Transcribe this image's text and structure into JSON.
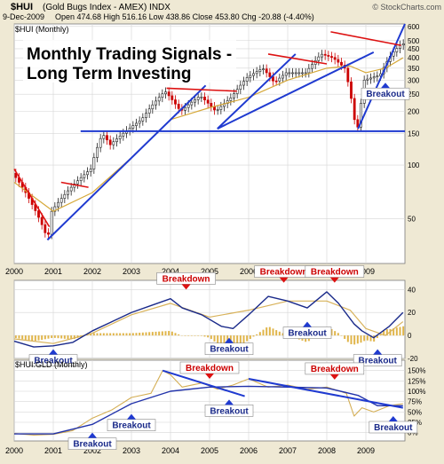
{
  "header": {
    "symbol": "$HUI",
    "name": "(Gold Bugs Index - AMEX) INDX",
    "date": "9-Dec-2009",
    "ohlc": "Open 474.68  High 516.16  Low 438.86  Close 453.80  Chg -20.88 (-4.40%)",
    "watermark": "© StockCharts.com"
  },
  "colors": {
    "background": "#efe9d4",
    "panel": "#ffffff",
    "grid": "#d6d6d6",
    "up": "#222222",
    "down": "#cc0000",
    "trendline": "#1f3ad0",
    "resistance": "#dd1111",
    "ma_long": "#d6a93a",
    "macd_line": "#1a2a8a",
    "macd_signal": "#d8b25a",
    "histogram": "#e0b54a",
    "ratio": "#d4ae54",
    "ratio_ma": "#2233aa",
    "label_text": "#1a2a8a",
    "breakdown_text": "#cc0000"
  },
  "chart_data": [
    {
      "type": "candlestick",
      "legend": "$HUI (Monthly)",
      "title": "Monthly Trading Signals - Long Term Investing",
      "scale": "log",
      "ylim": [
        28,
        620
      ],
      "ticks": [
        50,
        100,
        150,
        200,
        250,
        300,
        350,
        400,
        450,
        500,
        600
      ],
      "x_labels": [
        "2000",
        "2001",
        "2002",
        "2003",
        "2004",
        "2005",
        "2006",
        "2007",
        "2008",
        "2009"
      ],
      "xlim": [
        2000.0,
        2010.0
      ],
      "series": [
        {
          "name": "HUI",
          "x": [
            2000.0,
            2000.5,
            2000.9,
            2001.0,
            2001.5,
            2002.0,
            2002.3,
            2002.5,
            2002.9,
            2003.3,
            2003.9,
            2004.3,
            2004.8,
            2005.2,
            2005.6,
            2006.0,
            2006.4,
            2006.7,
            2007.0,
            2007.5,
            2007.9,
            2008.2,
            2008.5,
            2008.75,
            2008.85,
            2009.0,
            2009.4,
            2009.7,
            2009.95
          ],
          "values": [
            90,
            60,
            38,
            55,
            75,
            95,
            150,
            130,
            155,
            180,
            260,
            200,
            245,
            200,
            240,
            310,
            350,
            290,
            330,
            330,
            420,
            400,
            350,
            180,
            160,
            300,
            320,
            420,
            480
          ]
        },
        {
          "name": "MA",
          "x": [
            2000.0,
            2001.0,
            2002.0,
            2003.0,
            2004.0,
            2005.0,
            2006.0,
            2007.0,
            2008.0,
            2008.6,
            2009.0,
            2009.5,
            2009.95
          ],
          "values": [
            80,
            55,
            70,
            110,
            180,
            210,
            240,
            300,
            350,
            360,
            330,
            350,
            400
          ]
        }
      ],
      "trendlines": [
        {
          "x": [
            2000.85,
            2004.9
          ],
          "y": [
            38,
            280
          ]
        },
        {
          "x": [
            2005.2,
            2007.2
          ],
          "y": [
            160,
            420
          ]
        },
        {
          "x": [
            2005.2,
            2009.2
          ],
          "y": [
            160,
            430
          ]
        },
        {
          "x": [
            2008.8,
            2010.0
          ],
          "y": [
            160,
            620
          ]
        }
      ],
      "support": {
        "y": 155,
        "x": [
          2001.7,
          2010.0
        ]
      },
      "resistance": [
        {
          "x": [
            2000.0,
            2000.9
          ],
          "y": [
            95,
            45
          ]
        },
        {
          "x": [
            2001.2,
            2001.9
          ],
          "y": [
            80,
            75
          ]
        },
        {
          "x": [
            2003.9,
            2005.7
          ],
          "y": [
            270,
            260
          ]
        },
        {
          "x": [
            2006.5,
            2008.0
          ],
          "y": [
            420,
            370
          ]
        },
        {
          "x": [
            2008.1,
            2009.9
          ],
          "y": [
            560,
            470
          ]
        }
      ],
      "annotations": [
        {
          "label": "Breakout",
          "x": 2009.5,
          "y": 290
        }
      ]
    },
    {
      "type": "macd",
      "xlim": [
        2000.0,
        2010.0
      ],
      "ylim": [
        -20,
        48
      ],
      "ticks": [
        40,
        20,
        0,
        -20
      ],
      "series": [
        {
          "name": "MACD",
          "x": [
            2000.0,
            2000.5,
            2001.0,
            2001.5,
            2002.0,
            2002.5,
            2003.0,
            2003.5,
            2004.0,
            2004.3,
            2004.8,
            2005.3,
            2005.6,
            2006.0,
            2006.5,
            2007.0,
            2007.5,
            2008.0,
            2008.3,
            2008.7,
            2008.9,
            2009.2,
            2009.6,
            2009.95
          ],
          "values": [
            -5,
            -10,
            -9,
            -6,
            4,
            12,
            20,
            26,
            32,
            24,
            18,
            8,
            6,
            18,
            34,
            30,
            24,
            38,
            28,
            10,
            4,
            -2,
            8,
            20
          ]
        },
        {
          "name": "Signal",
          "x": [
            2000.0,
            2001.0,
            2002.0,
            2003.0,
            2004.0,
            2005.0,
            2006.0,
            2007.0,
            2008.0,
            2008.6,
            2009.0,
            2009.5,
            2009.95
          ],
          "values": [
            -3,
            -7,
            2,
            18,
            28,
            16,
            22,
            30,
            30,
            22,
            6,
            0,
            12
          ]
        }
      ],
      "annotations": [
        {
          "label": "Breakout",
          "kind": "breakout",
          "x": 2001.0,
          "y": -12
        },
        {
          "label": "Breakdown",
          "kind": "breakdown",
          "x": 2004.4,
          "y": 40
        },
        {
          "label": "Breakout",
          "kind": "breakout",
          "x": 2005.5,
          "y": -2
        },
        {
          "label": "Breakdown",
          "kind": "breakdown",
          "x": 2006.9,
          "y": 46
        },
        {
          "label": "Breakout",
          "kind": "breakout",
          "x": 2007.5,
          "y": 12
        },
        {
          "label": "Breakdown",
          "kind": "breakdown",
          "x": 2008.2,
          "y": 46
        },
        {
          "label": "Breakout",
          "kind": "breakout",
          "x": 2009.3,
          "y": -12
        }
      ]
    },
    {
      "type": "line",
      "legend": "$HUI:GLD (Monthly)",
      "xlim": [
        2000.0,
        2010.0
      ],
      "ylim": [
        -20,
        175
      ],
      "ticks": [
        150,
        125,
        100,
        75,
        50,
        25,
        0
      ],
      "tick_suffix": "%",
      "series": [
        {
          "name": "HUI:GLD",
          "x": [
            2000.0,
            2000.5,
            2001.0,
            2001.5,
            2002.0,
            2002.5,
            2003.0,
            2003.5,
            2003.8,
            2004.0,
            2004.3,
            2004.8,
            2005.2,
            2005.6,
            2006.0,
            2006.5,
            2007.0,
            2007.5,
            2008.0,
            2008.5,
            2008.7,
            2008.9,
            2009.2,
            2009.6,
            2009.95
          ],
          "values": [
            -2,
            -6,
            -4,
            5,
            35,
            55,
            85,
            95,
            150,
            140,
            110,
            120,
            105,
            115,
            130,
            110,
            115,
            105,
            110,
            95,
            40,
            60,
            50,
            65,
            70
          ]
        },
        {
          "name": "MA",
          "x": [
            2000.0,
            2001.0,
            2002.0,
            2003.0,
            2004.0,
            2005.0,
            2006.0,
            2007.0,
            2008.0,
            2008.8,
            2009.3,
            2009.95
          ],
          "values": [
            -3,
            -3,
            20,
            70,
            100,
            110,
            112,
            110,
            108,
            90,
            65,
            65
          ]
        }
      ],
      "trendlines": [
        {
          "x": [
            2003.8,
            2005.9
          ],
          "y": [
            150,
            88
          ]
        },
        {
          "x": [
            2006.0,
            2009.95
          ],
          "y": [
            130,
            60
          ]
        }
      ],
      "annotations": [
        {
          "label": "Breakout",
          "kind": "breakout",
          "x": 2002.0,
          "y": 0
        },
        {
          "label": "Breakout",
          "kind": "breakout",
          "x": 2003.0,
          "y": 45
        },
        {
          "label": "Breakdown",
          "kind": "breakdown",
          "x": 2005.0,
          "y": 130
        },
        {
          "label": "Breakout",
          "kind": "breakout",
          "x": 2005.5,
          "y": 80
        },
        {
          "label": "Breakdown",
          "kind": "breakdown",
          "x": 2008.2,
          "y": 128
        },
        {
          "label": "Breakout",
          "kind": "breakout",
          "x": 2009.7,
          "y": 40
        }
      ]
    }
  ]
}
